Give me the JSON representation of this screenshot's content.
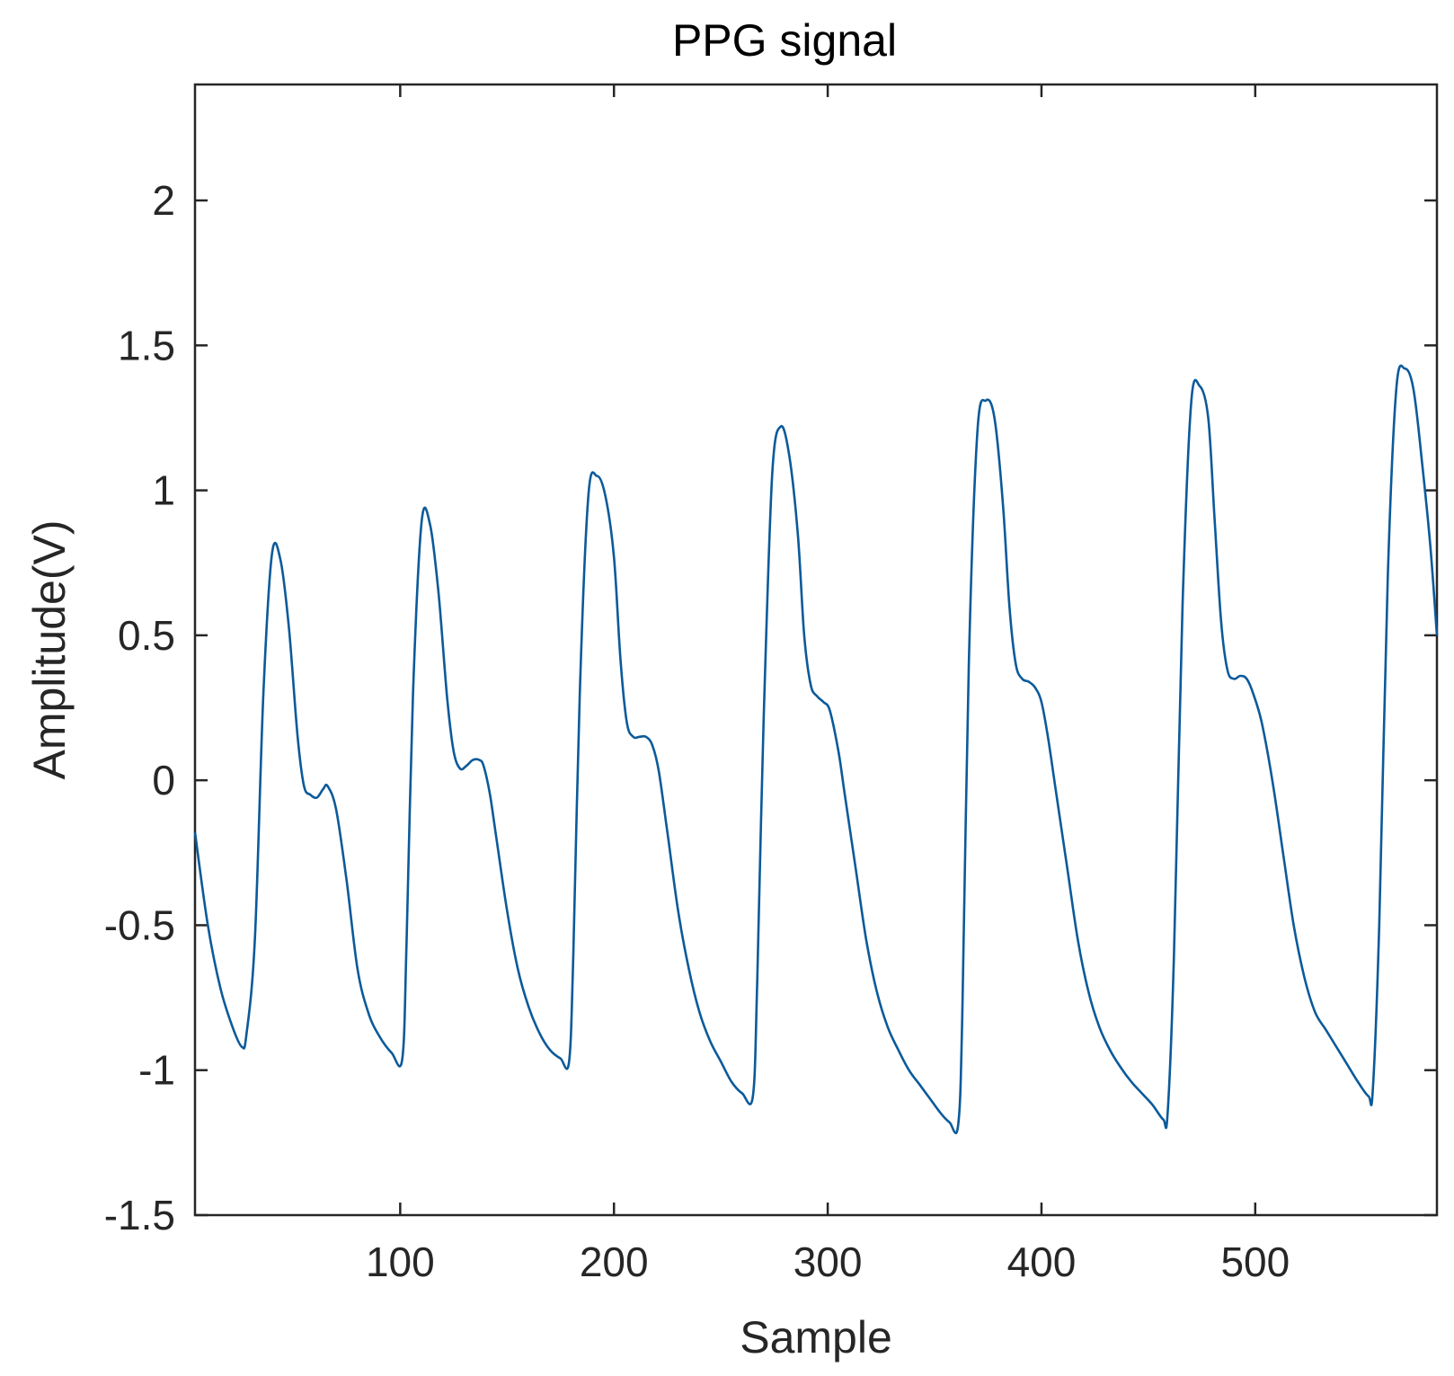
{
  "chart_data": {
    "type": "line",
    "title": "PPG signal",
    "xlabel": "Sample",
    "ylabel": "Amplitude(V)",
    "xlim": [
      4,
      585
    ],
    "ylim": [
      -1.5,
      2.4
    ],
    "x_ticks": [
      100,
      200,
      300,
      400,
      500
    ],
    "x_tick_labels": [
      "100",
      "200",
      "300",
      "400",
      "500"
    ],
    "y_ticks": [
      -1.5,
      -1,
      -0.5,
      0,
      0.5,
      1,
      1.5,
      2
    ],
    "y_tick_labels": [
      "-1.5",
      "-1",
      "-0.5",
      "0",
      "0.5",
      "1",
      "1.5",
      "2"
    ],
    "grid": false,
    "series": [
      {
        "color": "#0b5a9a",
        "x": [
          4,
          10,
          16,
          22,
          26,
          28,
          32,
          36,
          40,
          44,
          48,
          52,
          55,
          58,
          61,
          64,
          66,
          70,
          75,
          80,
          85,
          90,
          96,
          101,
          103,
          106,
          110,
          114,
          118,
          122,
          125,
          128,
          131,
          134,
          137,
          139,
          142,
          145,
          150,
          155,
          160,
          165,
          170,
          175,
          179,
          181,
          184,
          188,
          192,
          196,
          200,
          203,
          206,
          209,
          212,
          215,
          218,
          221,
          225,
          230,
          235,
          240,
          245,
          250,
          255,
          260,
          265,
          267,
          270,
          274,
          278,
          282,
          286,
          289,
          292,
          295,
          298,
          301,
          305,
          308,
          313,
          318,
          323,
          328,
          333,
          338,
          343,
          348,
          353,
          357,
          361,
          363,
          366,
          370,
          374,
          378,
          382,
          385,
          388,
          391,
          394,
          397,
          400,
          403,
          407,
          412,
          417,
          422,
          427,
          432,
          437,
          442,
          447,
          452,
          457,
          459,
          462,
          466,
          470,
          474,
          478,
          481,
          484,
          487,
          490,
          493,
          496,
          499,
          503,
          508,
          513,
          518,
          523,
          528,
          533,
          538,
          543,
          548,
          553,
          555,
          558,
          562,
          566,
          570,
          574,
          578,
          582,
          585
        ],
        "y": [
          -0.18,
          -0.5,
          -0.72,
          -0.86,
          -0.92,
          -0.88,
          -0.55,
          0.3,
          0.78,
          0.76,
          0.52,
          0.15,
          -0.02,
          -0.05,
          -0.06,
          -0.03,
          -0.02,
          -0.1,
          -0.35,
          -0.65,
          -0.8,
          -0.88,
          -0.94,
          -0.96,
          -0.55,
          0.3,
          0.89,
          0.88,
          0.64,
          0.28,
          0.1,
          0.04,
          0.05,
          0.07,
          0.07,
          0.05,
          -0.05,
          -0.2,
          -0.45,
          -0.65,
          -0.78,
          -0.87,
          -0.93,
          -0.96,
          -0.97,
          -0.6,
          0.3,
          0.98,
          1.05,
          0.98,
          0.77,
          0.42,
          0.2,
          0.15,
          0.15,
          0.15,
          0.12,
          0.03,
          -0.18,
          -0.45,
          -0.65,
          -0.8,
          -0.9,
          -0.97,
          -1.04,
          -1.08,
          -1.09,
          -0.7,
          0.2,
          1.05,
          1.22,
          1.12,
          0.85,
          0.5,
          0.33,
          0.29,
          0.27,
          0.24,
          0.1,
          -0.05,
          -0.3,
          -0.55,
          -0.73,
          -0.85,
          -0.93,
          -1.0,
          -1.05,
          -1.1,
          -1.15,
          -1.18,
          -1.19,
          -0.8,
          0.4,
          1.2,
          1.31,
          1.25,
          0.95,
          0.6,
          0.4,
          0.35,
          0.34,
          0.32,
          0.27,
          0.15,
          -0.05,
          -0.3,
          -0.55,
          -0.73,
          -0.85,
          -0.93,
          -0.99,
          -1.04,
          -1.08,
          -1.12,
          -1.17,
          -1.15,
          -0.6,
          0.6,
          1.3,
          1.36,
          1.25,
          0.9,
          0.55,
          0.38,
          0.35,
          0.36,
          0.35,
          0.3,
          0.2,
          0.0,
          -0.25,
          -0.5,
          -0.68,
          -0.8,
          -0.86,
          -0.92,
          -0.98,
          -1.04,
          -1.09,
          -1.07,
          -0.5,
          0.7,
          1.35,
          1.42,
          1.35,
          1.1,
          0.8,
          0.5
        ]
      }
    ]
  }
}
